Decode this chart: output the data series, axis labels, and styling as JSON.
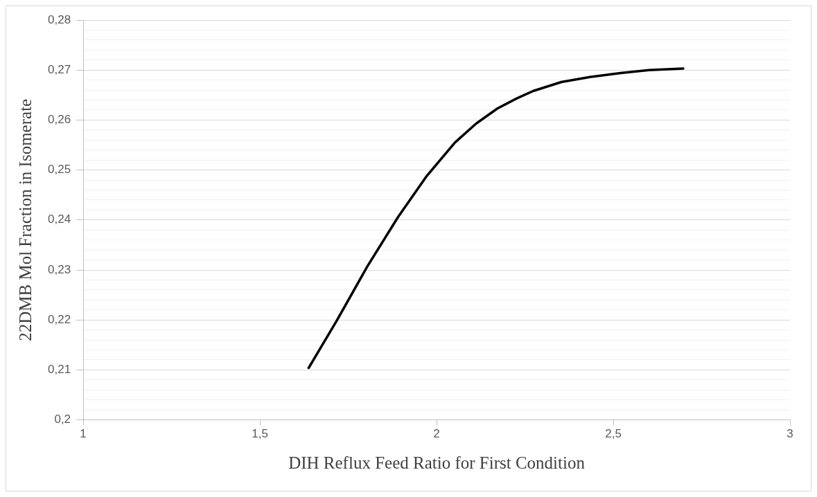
{
  "chart_data": {
    "type": "line",
    "xlabel": "DIH Reflux Feed Ratio for First Condition",
    "ylabel": "22DMB Mol Fraction in Isomerate",
    "x": [
      1.638,
      1.717,
      1.804,
      1.891,
      1.971,
      2.052,
      2.112,
      2.172,
      2.226,
      2.273,
      2.353,
      2.434,
      2.521,
      2.601,
      2.698
    ],
    "series": [
      {
        "color": "#000000",
        "values": [
          0.2104,
          0.2198,
          0.2307,
          0.2406,
          0.2487,
          0.2555,
          0.2593,
          0.2623,
          0.2643,
          0.2658,
          0.2676,
          0.2686,
          0.2694,
          0.27,
          0.2703
        ]
      }
    ],
    "xlim": [
      1,
      3
    ],
    "xticks": [
      1,
      {
        "value": 1.5,
        "label": "1,5"
      },
      2,
      {
        "value": 2.5,
        "label": "2,5"
      },
      3
    ],
    "ylim": [
      0.2,
      0.28
    ],
    "yticks": [
      {
        "value": 0.2,
        "label": "0,2"
      },
      {
        "value": 0.202,
        "label": null
      },
      {
        "value": 0.204,
        "label": null
      },
      {
        "value": 0.206,
        "label": null
      },
      {
        "value": 0.208,
        "label": null
      },
      {
        "value": 0.21,
        "label": "0,21"
      },
      {
        "value": 0.212,
        "label": null
      },
      {
        "value": 0.214,
        "label": null
      },
      {
        "value": 0.216,
        "label": null
      },
      {
        "value": 0.218,
        "label": null
      },
      {
        "value": 0.22,
        "label": "0,22"
      },
      {
        "value": 0.222,
        "label": null
      },
      {
        "value": 0.224,
        "label": null
      },
      {
        "value": 0.226,
        "label": null
      },
      {
        "value": 0.228,
        "label": null
      },
      {
        "value": 0.23,
        "label": "0,23"
      },
      {
        "value": 0.232,
        "label": null
      },
      {
        "value": 0.234,
        "label": null
      },
      {
        "value": 0.236,
        "label": null
      },
      {
        "value": 0.238,
        "label": null
      },
      {
        "value": 0.24,
        "label": "0,24"
      },
      {
        "value": 0.242,
        "label": null
      },
      {
        "value": 0.244,
        "label": null
      },
      {
        "value": 0.246,
        "label": null
      },
      {
        "value": 0.248,
        "label": null
      },
      {
        "value": 0.25,
        "label": "0,25"
      },
      {
        "value": 0.252,
        "label": null
      },
      {
        "value": 0.254,
        "label": null
      },
      {
        "value": 0.256,
        "label": null
      },
      {
        "value": 0.258,
        "label": null
      },
      {
        "value": 0.26,
        "label": "0,26"
      },
      {
        "value": 0.262,
        "label": null
      },
      {
        "value": 0.264,
        "label": null
      },
      {
        "value": 0.266,
        "label": null
      },
      {
        "value": 0.268,
        "label": null
      },
      {
        "value": 0.27,
        "label": "0,27"
      },
      {
        "value": 0.272,
        "label": null
      },
      {
        "value": 0.274,
        "label": null
      },
      {
        "value": 0.276,
        "label": null
      },
      {
        "value": 0.278,
        "label": null
      },
      {
        "value": 0.28,
        "label": "0,28"
      }
    ],
    "grid": "y",
    "legend": false,
    "marker": "none",
    "line_style": "solid"
  }
}
